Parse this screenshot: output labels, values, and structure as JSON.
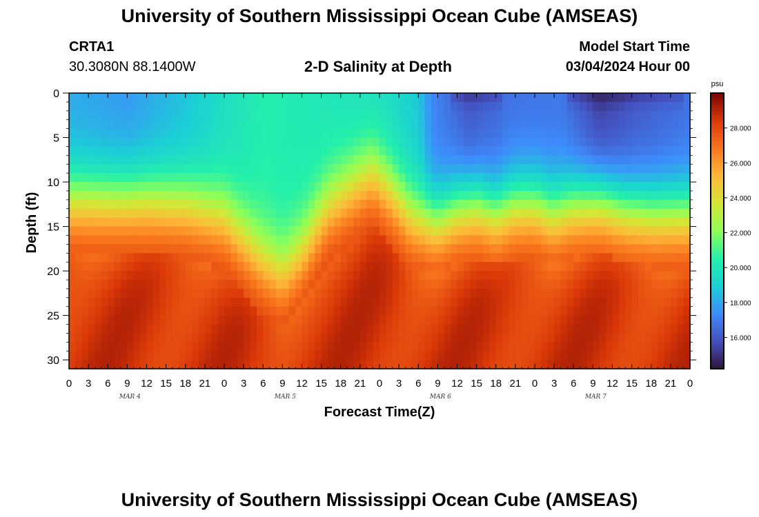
{
  "header": {
    "title": "University of Southern Mississippi Ocean Cube (AMSEAS)",
    "station_id": "CRTA1",
    "station_coords": "30.3080N  88.1400W",
    "chart_title": "2-D Salinity at Depth",
    "model_start_label": "Model Start Time",
    "model_start_value": "03/04/2024 Hour 00"
  },
  "footer": {
    "title": "University of Southern Mississippi Ocean Cube (AMSEAS)"
  },
  "chart_data": {
    "type": "heatmap",
    "title": "2-D Salinity at Depth",
    "xlabel": "Forecast Time(Z)",
    "ylabel": "Depth (ft)",
    "x_tick_labels": [
      "0",
      "3",
      "6",
      "9",
      "12",
      "15",
      "18",
      "21",
      "0",
      "3",
      "6",
      "9",
      "12",
      "15",
      "18",
      "21",
      "0",
      "3",
      "6",
      "9",
      "12",
      "15",
      "18",
      "21",
      "0",
      "3",
      "6",
      "9",
      "12",
      "15",
      "18",
      "21",
      "0"
    ],
    "x_range_hours": [
      0,
      96
    ],
    "date_labels": [
      {
        "label": "MAR 4",
        "hour": 9
      },
      {
        "label": "MAR 5",
        "hour": 33
      },
      {
        "label": "MAR 6",
        "hour": 57
      },
      {
        "label": "MAR 7",
        "hour": 81
      }
    ],
    "y_ticks": [
      "0",
      "5",
      "10",
      "15",
      "20",
      "25",
      "30"
    ],
    "y_range_ft": [
      0,
      31
    ],
    "colorbar": {
      "unit": "psu",
      "min": 14.2,
      "max": 30.0,
      "ticks": [
        "16.000",
        "18.000",
        "20.000",
        "22.000",
        "24.000",
        "26.000",
        "28.000"
      ]
    },
    "halocline_depth_ft_by_hour": [
      {
        "hour": 0,
        "depth": 12
      },
      {
        "hour": 12,
        "depth": 12
      },
      {
        "hour": 18,
        "depth": 12.5
      },
      {
        "hour": 24,
        "depth": 14
      },
      {
        "hour": 30,
        "depth": 19
      },
      {
        "hour": 33,
        "depth": 20.5
      },
      {
        "hour": 36,
        "depth": 18
      },
      {
        "hour": 40,
        "depth": 13
      },
      {
        "hour": 45,
        "depth": 10
      },
      {
        "hour": 47,
        "depth": 9
      },
      {
        "hour": 49,
        "depth": 10.5
      },
      {
        "hour": 53,
        "depth": 14
      },
      {
        "hour": 57,
        "depth": 14.5
      },
      {
        "hour": 60,
        "depth": 13
      },
      {
        "hour": 63,
        "depth": 12.5
      },
      {
        "hour": 66,
        "depth": 13.5
      },
      {
        "hour": 69,
        "depth": 12.5
      },
      {
        "hour": 72,
        "depth": 12.5
      },
      {
        "hour": 75,
        "depth": 13.5
      },
      {
        "hour": 78,
        "depth": 12.5
      },
      {
        "hour": 82,
        "depth": 12
      },
      {
        "hour": 86,
        "depth": 13
      },
      {
        "hour": 90,
        "depth": 13.5
      },
      {
        "hour": 96,
        "depth": 13.5
      }
    ],
    "surface_salinity_psu_by_hour": [
      {
        "hour": 0,
        "value": 18.0
      },
      {
        "hour": 9,
        "value": 17.6
      },
      {
        "hour": 18,
        "value": 18.6
      },
      {
        "hour": 24,
        "value": 19.6
      },
      {
        "hour": 30,
        "value": 20.4
      },
      {
        "hour": 40,
        "value": 20.0
      },
      {
        "hour": 50,
        "value": 19.4
      },
      {
        "hour": 54,
        "value": 18.8
      },
      {
        "hour": 56,
        "value": 17.2
      },
      {
        "hour": 62,
        "value": 15.8
      },
      {
        "hour": 68,
        "value": 16.6
      },
      {
        "hour": 76,
        "value": 16.8
      },
      {
        "hour": 82,
        "value": 15.2
      },
      {
        "hour": 88,
        "value": 16.0
      },
      {
        "hour": 96,
        "value": 16.6
      }
    ],
    "deep_salinity_psu": 28.5
  }
}
